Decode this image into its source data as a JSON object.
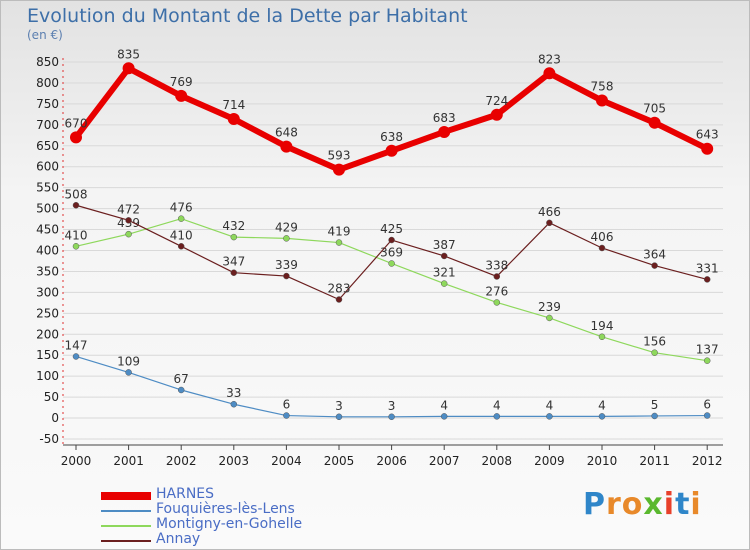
{
  "chart_data": {
    "type": "line",
    "title": "Evolution du Montant de la Dette par Habitant",
    "ylabel": "(en €)",
    "xlabel": "",
    "x": [
      "2000",
      "2001",
      "2002",
      "2003",
      "2004",
      "2005",
      "2006",
      "2007",
      "2008",
      "2009",
      "2010",
      "2011",
      "2012"
    ],
    "yticks": [
      -50,
      0,
      50,
      100,
      150,
      200,
      250,
      300,
      350,
      400,
      450,
      500,
      550,
      600,
      650,
      700,
      750,
      800,
      850
    ],
    "ylim": [
      -50,
      850
    ],
    "series": [
      {
        "name": "HARNES",
        "color": "#e80000",
        "width": 6,
        "values": [
          670,
          835,
          769,
          714,
          648,
          593,
          638,
          683,
          724,
          823,
          758,
          705,
          643
        ]
      },
      {
        "name": "Fouquières-lès-Lens",
        "color": "#4e8cc4",
        "width": 1.2,
        "values": [
          147,
          109,
          67,
          33,
          6,
          3,
          3,
          4,
          4,
          4,
          4,
          5,
          6
        ]
      },
      {
        "name": "Montigny-en-Gohelle",
        "color": "#8ed85c",
        "width": 1.2,
        "values": [
          410,
          439,
          476,
          432,
          429,
          419,
          369,
          321,
          276,
          239,
          194,
          156,
          137
        ]
      },
      {
        "name": "Annay",
        "color": "#6b1f1f",
        "width": 1.2,
        "values": [
          508,
          472,
          410,
          347,
          339,
          283,
          425,
          387,
          338,
          466,
          406,
          364,
          331
        ]
      }
    ]
  },
  "brand": {
    "letters": [
      "P",
      "r",
      "o",
      "x",
      "i",
      "t",
      "i"
    ],
    "colors": [
      "#2f86c9",
      "#e8892a",
      "#e8892a",
      "#5ab82e",
      "#e8402a",
      "#2f86c9",
      "#e8892a"
    ]
  }
}
